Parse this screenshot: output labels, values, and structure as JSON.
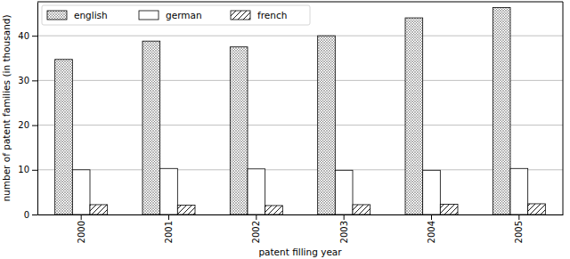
{
  "chart_data": {
    "type": "bar",
    "x_label": "patent filling year",
    "y_label": "number of patent families (in thousand)",
    "categories": [
      "2000",
      "2001",
      "2002",
      "2003",
      "2004",
      "2005"
    ],
    "series": [
      {
        "name": "english",
        "color": "#ffffff",
        "values": [
          34.7,
          38.8,
          37.5,
          40.0,
          44.0,
          46.3
        ]
      },
      {
        "name": "german",
        "color": "#ffffff",
        "values": [
          10.0,
          10.3,
          10.2,
          9.9,
          9.9,
          10.3
        ]
      },
      {
        "name": "french",
        "color": "#ffffff",
        "values": [
          2.2,
          2.1,
          2.0,
          2.2,
          2.3,
          2.4
        ]
      }
    ],
    "ylim": [
      0,
      47.6
    ],
    "yticks": [
      0,
      10,
      20,
      30,
      40
    ],
    "grid": true,
    "legend": "upper left"
  }
}
